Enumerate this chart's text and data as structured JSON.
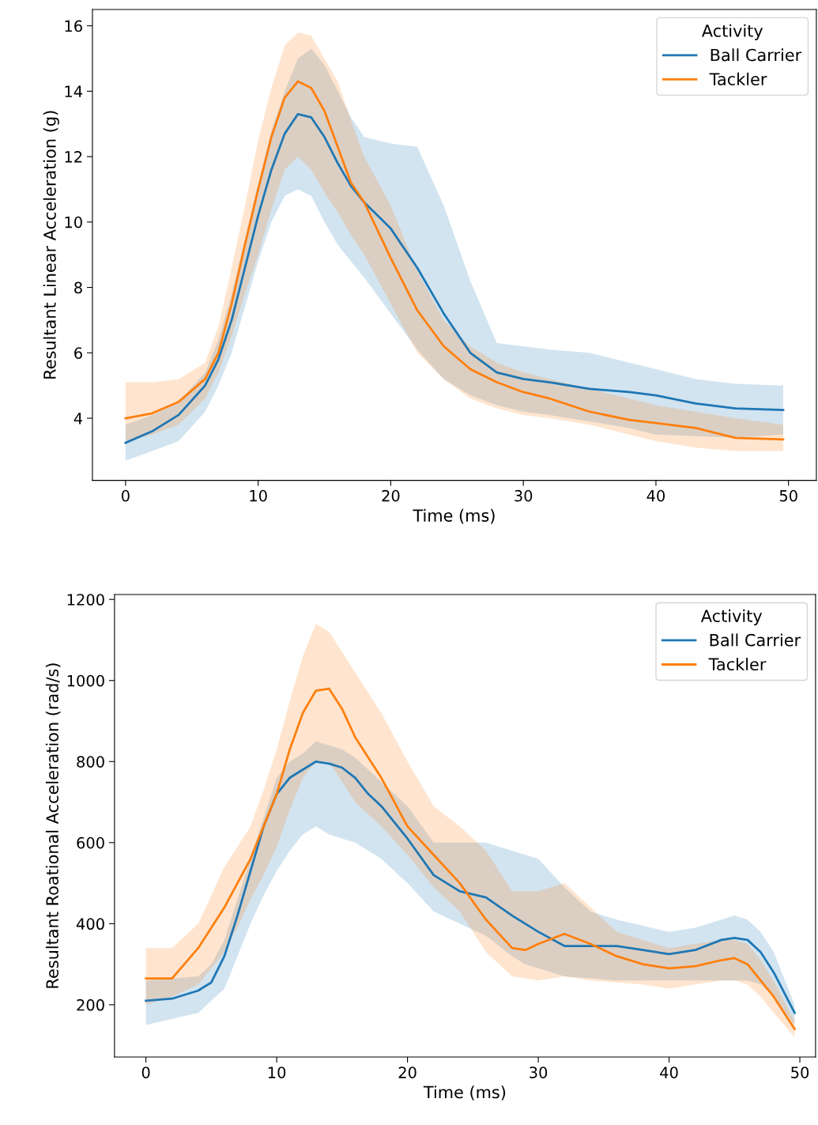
{
  "chart_data": [
    {
      "type": "line",
      "xlabel": "Time (ms)",
      "ylabel": "Resultant Linear Acceleration (g)",
      "legend_title": "Activity",
      "legend": "top right",
      "grid": false,
      "xlim": [
        -2.5,
        52.1
      ],
      "xticks": [
        0,
        10,
        20,
        30,
        40,
        50
      ],
      "ylim": [
        2.1,
        16.5
      ],
      "yticks": [
        4,
        6,
        8,
        10,
        12,
        14,
        16
      ],
      "x": [
        0,
        2,
        4,
        6,
        7,
        8,
        9,
        10,
        11,
        12,
        13,
        14,
        15,
        16,
        17,
        18,
        20,
        22,
        24,
        26,
        28,
        30,
        32,
        35,
        38,
        40,
        43,
        46,
        49.6
      ],
      "series": [
        {
          "name": "Ball Carrier",
          "color": "#1f77b4",
          "values": [
            3.25,
            3.6,
            4.1,
            5.0,
            5.8,
            7.0,
            8.6,
            10.2,
            11.6,
            12.7,
            13.3,
            13.2,
            12.6,
            11.8,
            11.1,
            10.6,
            9.8,
            8.6,
            7.2,
            6.0,
            5.4,
            5.2,
            5.1,
            4.9,
            4.8,
            4.7,
            4.45,
            4.3,
            4.25
          ],
          "lower": [
            2.7,
            3.0,
            3.3,
            4.2,
            5.0,
            6.0,
            7.4,
            8.8,
            10.0,
            10.8,
            11.0,
            10.8,
            10.0,
            9.3,
            8.8,
            8.3,
            7.2,
            6.1,
            5.2,
            4.7,
            4.4,
            4.2,
            4.1,
            3.9,
            3.7,
            3.5,
            3.45,
            3.4,
            3.5
          ],
          "upper": [
            3.8,
            4.1,
            4.5,
            5.4,
            6.4,
            7.8,
            9.5,
            11.2,
            12.8,
            14.0,
            15.0,
            15.3,
            14.8,
            14.0,
            13.2,
            12.6,
            12.4,
            12.3,
            10.5,
            8.2,
            6.3,
            6.2,
            6.1,
            6.0,
            5.7,
            5.5,
            5.2,
            5.05,
            5.0
          ]
        },
        {
          "name": "Tackler",
          "color": "#ff7f0e",
          "values": [
            4.0,
            4.15,
            4.5,
            5.2,
            6.0,
            7.5,
            9.3,
            11.0,
            12.6,
            13.8,
            14.3,
            14.1,
            13.4,
            12.3,
            11.2,
            10.6,
            8.9,
            7.3,
            6.2,
            5.5,
            5.1,
            4.8,
            4.6,
            4.2,
            3.95,
            3.85,
            3.7,
            3.4,
            3.35
          ],
          "lower": [
            3.3,
            3.5,
            3.8,
            4.6,
            5.4,
            6.5,
            7.8,
            9.0,
            10.4,
            11.6,
            12.0,
            11.6,
            10.9,
            10.3,
            9.6,
            9.0,
            7.5,
            6.0,
            5.2,
            4.6,
            4.3,
            4.1,
            4.0,
            3.8,
            3.5,
            3.3,
            3.1,
            3.0,
            3.0
          ],
          "upper": [
            5.1,
            5.1,
            5.2,
            5.7,
            6.8,
            8.6,
            10.5,
            12.5,
            14.1,
            15.4,
            15.8,
            15.7,
            15.0,
            14.3,
            13.1,
            12.0,
            10.5,
            8.5,
            7.0,
            6.2,
            5.7,
            5.4,
            5.2,
            4.9,
            4.6,
            4.4,
            4.2,
            4.0,
            3.8
          ]
        }
      ]
    },
    {
      "type": "line",
      "xlabel": "Time (ms)",
      "ylabel": "Resultant Roational Acceleration (rad/s)",
      "legend_title": "Activity",
      "legend": "top right",
      "grid": false,
      "xlim": [
        -2.4,
        51.2
      ],
      "xticks": [
        0,
        10,
        20,
        30,
        40,
        50
      ],
      "ylim": [
        71,
        1212
      ],
      "yticks": [
        200,
        400,
        600,
        800,
        1000,
        1200
      ],
      "x": [
        0,
        2,
        4,
        5,
        6,
        7,
        8,
        9,
        10,
        11,
        12,
        13,
        14,
        15,
        16,
        17,
        18,
        20,
        22,
        24,
        26,
        28,
        29,
        30,
        32,
        34,
        36,
        38,
        40,
        42,
        44,
        45,
        46,
        47,
        48,
        49.6
      ],
      "series": [
        {
          "name": "Ball Carrier",
          "color": "#1f77b4",
          "values": [
            210,
            215,
            235,
            255,
            320,
            420,
            530,
            640,
            720,
            760,
            780,
            800,
            795,
            785,
            760,
            720,
            690,
            610,
            520,
            480,
            465,
            420,
            400,
            380,
            345,
            345,
            345,
            335,
            325,
            335,
            360,
            365,
            360,
            330,
            280,
            180
          ],
          "lower": [
            150,
            165,
            180,
            210,
            240,
            320,
            400,
            470,
            530,
            580,
            620,
            640,
            620,
            610,
            600,
            580,
            560,
            500,
            430,
            400,
            370,
            320,
            300,
            290,
            270,
            265,
            260,
            260,
            260,
            260,
            260,
            260,
            260,
            250,
            220,
            150
          ],
          "upper": [
            260,
            265,
            270,
            300,
            360,
            460,
            560,
            660,
            760,
            800,
            820,
            850,
            840,
            830,
            810,
            780,
            750,
            690,
            600,
            600,
            600,
            580,
            570,
            560,
            490,
            430,
            410,
            395,
            380,
            390,
            410,
            420,
            410,
            380,
            330,
            200
          ]
        },
        {
          "name": "Tackler",
          "color": "#ff7f0e",
          "values": [
            265,
            265,
            340,
            390,
            440,
            500,
            560,
            640,
            720,
            830,
            920,
            975,
            980,
            930,
            860,
            810,
            760,
            640,
            570,
            500,
            410,
            340,
            335,
            350,
            375,
            350,
            320,
            300,
            290,
            295,
            310,
            315,
            300,
            260,
            220,
            140
          ],
          "lower": [
            200,
            220,
            250,
            290,
            330,
            390,
            460,
            520,
            590,
            680,
            760,
            800,
            800,
            750,
            700,
            670,
            640,
            570,
            490,
            430,
            330,
            270,
            265,
            260,
            270,
            260,
            255,
            250,
            240,
            250,
            260,
            260,
            250,
            220,
            180,
            120
          ],
          "upper": [
            340,
            340,
            400,
            470,
            540,
            590,
            640,
            730,
            830,
            950,
            1060,
            1140,
            1120,
            1070,
            1020,
            970,
            920,
            800,
            690,
            640,
            580,
            480,
            480,
            480,
            500,
            440,
            380,
            360,
            340,
            350,
            360,
            360,
            350,
            310,
            260,
            160
          ]
        }
      ]
    }
  ]
}
